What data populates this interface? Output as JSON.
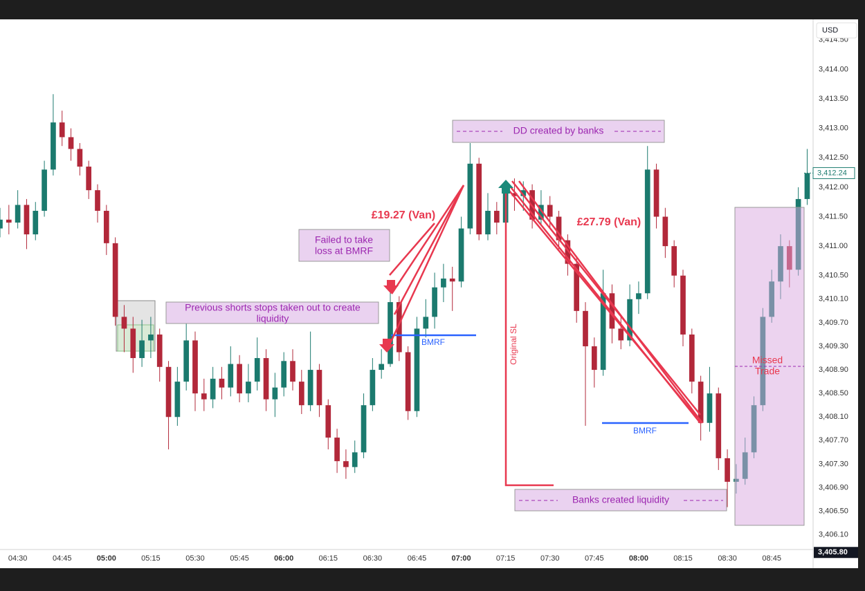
{
  "chart_data": {
    "type": "candlestick",
    "currency": "USD",
    "x": [
      "04:24",
      "04:27",
      "04:30",
      "04:33",
      "04:36",
      "04:39",
      "04:42",
      "04:45",
      "04:48",
      "04:51",
      "04:54",
      "04:57",
      "05:00",
      "05:03",
      "05:06",
      "05:09",
      "05:12",
      "05:15",
      "05:18",
      "05:21",
      "05:24",
      "05:27",
      "05:30",
      "05:33",
      "05:36",
      "05:39",
      "05:42",
      "05:45",
      "05:48",
      "05:51",
      "05:54",
      "05:57",
      "06:00",
      "06:03",
      "06:06",
      "06:09",
      "06:12",
      "06:15",
      "06:18",
      "06:21",
      "06:24",
      "06:27",
      "06:30",
      "06:33",
      "06:36",
      "06:39",
      "06:42",
      "06:45",
      "06:48",
      "06:51",
      "06:54",
      "06:57",
      "07:00",
      "07:03",
      "07:06",
      "07:09",
      "07:12",
      "07:15",
      "07:18",
      "07:21",
      "07:24",
      "07:27",
      "07:30",
      "07:33",
      "07:36",
      "07:39",
      "07:42",
      "07:45",
      "07:48",
      "07:51",
      "07:54",
      "07:57",
      "08:00",
      "08:03",
      "08:06",
      "08:09",
      "08:12",
      "08:15",
      "08:18",
      "08:21",
      "08:24",
      "08:27",
      "08:30",
      "08:33",
      "08:36",
      "08:39",
      "08:42",
      "08:45",
      "08:48",
      "08:51",
      "08:54",
      "08:57"
    ],
    "open": [
      3411.3,
      3411.45,
      3411.4,
      3411.7,
      3411.2,
      3411.6,
      3412.3,
      3413.1,
      3412.85,
      3412.65,
      3412.35,
      3411.95,
      3411.6,
      3411.05,
      3409.8,
      3409.6,
      3409.1,
      3409.4,
      3409.5,
      3408.95,
      3408.1,
      3408.7,
      3409.4,
      3408.5,
      3408.4,
      3408.75,
      3408.6,
      3409.0,
      3408.5,
      3408.7,
      3409.1,
      3408.4,
      3408.6,
      3409.05,
      3408.7,
      3408.3,
      3408.9,
      3408.3,
      3407.75,
      3407.35,
      3407.25,
      3407.5,
      3408.3,
      3408.9,
      3409.0,
      3410.05,
      3409.2,
      3408.2,
      3409.6,
      3409.8,
      3410.3,
      3410.45,
      3410.4,
      3411.3,
      3412.4,
      3411.2,
      3411.6,
      3411.4,
      3411.9,
      3411.85,
      3411.95,
      3411.45,
      3411.7,
      3411.5,
      3411.1,
      3410.7,
      3409.9,
      3409.3,
      3408.9,
      3410.2,
      3409.6,
      3409.4,
      3410.1,
      3410.2,
      3412.3,
      3411.5,
      3411.0,
      3410.5,
      3409.5,
      3408.7,
      3408.0,
      3408.5,
      3407.4,
      3407.0,
      3407.05,
      3407.5,
      3408.3,
      3409.8,
      3410.4,
      3411.0,
      3410.6,
      3411.8
    ],
    "high": [
      3411.65,
      3411.7,
      3411.95,
      3411.8,
      3411.75,
      3412.45,
      3413.58,
      3413.3,
      3413.0,
      3412.75,
      3412.45,
      3412.05,
      3411.7,
      3411.15,
      3410.0,
      3409.8,
      3409.75,
      3409.8,
      3409.6,
      3409.05,
      3408.95,
      3409.8,
      3409.55,
      3408.75,
      3408.95,
      3408.95,
      3409.3,
      3409.15,
      3409.0,
      3409.45,
      3409.25,
      3408.85,
      3409.2,
      3409.25,
      3408.9,
      3409.55,
      3409.0,
      3408.4,
      3407.9,
      3407.55,
      3407.7,
      3408.5,
      3409.1,
      3409.25,
      3410.25,
      3410.15,
      3409.3,
      3409.8,
      3410.1,
      3410.55,
      3410.7,
      3410.65,
      3411.5,
      3412.75,
      3412.5,
      3411.9,
      3411.75,
      3412.1,
      3412.15,
      3412.1,
      3412.05,
      3411.95,
      3411.85,
      3411.6,
      3411.2,
      3410.8,
      3410.05,
      3409.45,
      3410.6,
      3410.35,
      3409.8,
      3410.35,
      3410.4,
      3412.7,
      3412.4,
      3411.65,
      3411.1,
      3410.6,
      3409.6,
      3408.8,
      3408.95,
      3408.6,
      3407.55,
      3407.3,
      3407.75,
      3408.45,
      3409.95,
      3410.6,
      3411.2,
      3411.1,
      3412.0,
      3412.65
    ],
    "low": [
      3411.15,
      3411.2,
      3411.3,
      3410.95,
      3411.1,
      3411.5,
      3412.2,
      3412.7,
      3412.45,
      3412.2,
      3411.8,
      3411.4,
      3410.85,
      3409.65,
      3409.2,
      3408.85,
      3408.95,
      3409.1,
      3408.7,
      3407.55,
      3407.95,
      3408.55,
      3408.2,
      3408.2,
      3408.25,
      3408.4,
      3408.45,
      3408.35,
      3408.35,
      3408.55,
      3408.2,
      3408.1,
      3408.45,
      3408.55,
      3408.15,
      3408.2,
      3408.1,
      3407.55,
      3407.15,
      3407.05,
      3407.15,
      3407.4,
      3408.2,
      3408.75,
      3408.95,
      3409.05,
      3408.05,
      3408.1,
      3409.45,
      3409.6,
      3410.05,
      3409.9,
      3410.3,
      3411.2,
      3411.1,
      3411.1,
      3411.2,
      3411.3,
      3411.6,
      3411.6,
      3411.3,
      3411.35,
      3411.3,
      3410.95,
      3410.5,
      3409.7,
      3407.95,
      3408.6,
      3408.8,
      3409.35,
      3409.25,
      3409.3,
      3409.85,
      3410.1,
      3411.3,
      3410.8,
      3410.3,
      3409.3,
      3408.5,
      3407.7,
      3407.85,
      3407.2,
      3406.57,
      3406.8,
      3406.95,
      3407.4,
      3408.2,
      3409.7,
      3410.1,
      3410.3,
      3410.5,
      3411.7
    ],
    "close": [
      3411.45,
      3411.4,
      3411.7,
      3411.2,
      3411.6,
      3412.3,
      3413.1,
      3412.85,
      3412.65,
      3412.35,
      3411.95,
      3411.6,
      3411.05,
      3409.8,
      3409.6,
      3409.1,
      3409.4,
      3409.5,
      3408.95,
      3408.1,
      3408.7,
      3409.4,
      3408.5,
      3408.4,
      3408.75,
      3408.6,
      3409.0,
      3408.5,
      3408.7,
      3409.1,
      3408.4,
      3408.6,
      3409.05,
      3408.7,
      3408.3,
      3408.9,
      3408.3,
      3407.75,
      3407.35,
      3407.25,
      3407.5,
      3408.3,
      3408.9,
      3409.0,
      3410.05,
      3409.2,
      3408.2,
      3409.6,
      3409.8,
      3410.3,
      3410.45,
      3410.4,
      3411.3,
      3412.4,
      3411.2,
      3411.6,
      3411.4,
      3411.9,
      3411.85,
      3411.95,
      3411.45,
      3411.7,
      3411.5,
      3411.1,
      3410.7,
      3409.9,
      3409.3,
      3408.9,
      3410.2,
      3409.6,
      3409.4,
      3410.1,
      3410.2,
      3412.3,
      3411.5,
      3411.0,
      3410.5,
      3409.5,
      3408.7,
      3408.0,
      3408.5,
      3407.4,
      3407.0,
      3407.05,
      3407.5,
      3408.3,
      3409.8,
      3410.4,
      3411.0,
      3410.6,
      3411.8,
      3412.24
    ],
    "up_color": "#1b7a6e",
    "down_color": "#b2283a",
    "xlim": [
      "04:24",
      "08:59"
    ],
    "xticks": [
      "04:30",
      "04:45",
      "05:00",
      "05:15",
      "05:30",
      "05:45",
      "06:00",
      "06:15",
      "06:30",
      "06:45",
      "07:00",
      "07:15",
      "07:30",
      "07:45",
      "08:00",
      "08:15",
      "08:30",
      "08:45"
    ],
    "ylim": [
      3405.85,
      3414.85
    ],
    "yticks": [
      {
        "value": 3406.1,
        "label": "3,406.10"
      },
      {
        "value": 3406.5,
        "label": "3,406.50"
      },
      {
        "value": 3406.9,
        "label": "3,406.90"
      },
      {
        "value": 3407.3,
        "label": "3,407.30"
      },
      {
        "value": 3407.7,
        "label": "3,407.70"
      },
      {
        "value": 3408.1,
        "label": "3,408.10"
      },
      {
        "value": 3408.5,
        "label": "3,408.50"
      },
      {
        "value": 3408.9,
        "label": "3,408.90"
      },
      {
        "value": 3409.3,
        "label": "3,409.30"
      },
      {
        "value": 3409.7,
        "label": "3,409.70"
      },
      {
        "value": 3410.1,
        "label": "3,410.10"
      },
      {
        "value": 3410.5,
        "label": "3,410.50"
      },
      {
        "value": 3411.0,
        "label": "3,411.00"
      },
      {
        "value": 3411.5,
        "label": "3,411.50"
      },
      {
        "value": 3412.0,
        "label": "3,412.00"
      },
      {
        "value": 3412.5,
        "label": "3,412.50"
      },
      {
        "value": 3413.0,
        "label": "3,413.00"
      },
      {
        "value": 3413.5,
        "label": "3,413.50"
      },
      {
        "value": 3414.0,
        "label": "3,414.00"
      },
      {
        "value": 3414.5,
        "label": "3,414.50"
      }
    ],
    "grid": false,
    "last_price": {
      "value": 3412.24,
      "label": "3,412.24"
    },
    "crosshair_price": {
      "value": 3405.8,
      "label": "3,405.80"
    },
    "annotations": [
      "£19.27 (Van)",
      "£27.79 (Van)",
      "Failed to take",
      "loss at BMRF",
      "Previous shorts stops taken out to create",
      "liquidity",
      "DD created by banks",
      "BMRF",
      "BMRF",
      "Original SL",
      "Banks created liquidity",
      "Missed",
      "Trade"
    ]
  }
}
